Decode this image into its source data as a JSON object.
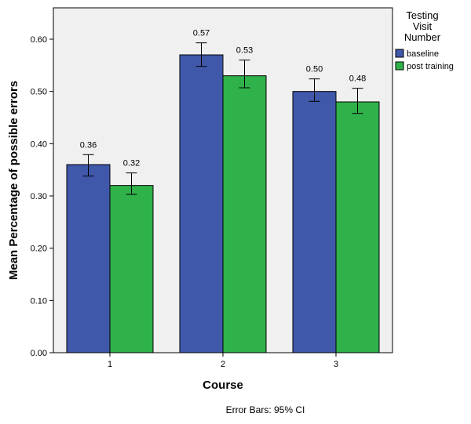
{
  "chart_data": {
    "type": "bar",
    "categories": [
      "1",
      "2",
      "3"
    ],
    "series": [
      {
        "name": "baseline",
        "color": "#3f58aa",
        "values": [
          0.36,
          0.57,
          0.5
        ],
        "ci_low": [
          0.338,
          0.548,
          0.481
        ],
        "ci_high": [
          0.379,
          0.593,
          0.524
        ],
        "labels": [
          "0.36",
          "0.57",
          "0.50"
        ]
      },
      {
        "name": "post training",
        "color": "#2fb24a",
        "values": [
          0.32,
          0.53,
          0.48
        ],
        "ci_low": [
          0.303,
          0.507,
          0.458
        ],
        "ci_high": [
          0.344,
          0.56,
          0.506
        ],
        "labels": [
          "0.32",
          "0.53",
          "0.48"
        ]
      }
    ],
    "xlabel": "Course",
    "ylabel": "Mean Percentage of possible errors",
    "ylim": [
      0,
      0.6
    ],
    "yticks": [
      0,
      0.1,
      0.2,
      0.3,
      0.4,
      0.5,
      0.6
    ],
    "ytick_labels": [
      "0.00",
      "0.10",
      "0.20",
      "0.30",
      "0.40",
      "0.50",
      "0.60"
    ],
    "legend": {
      "title_lines": [
        "Testing",
        "Visit",
        "Number"
      ],
      "position": "top-right, outside plot"
    },
    "footnote": "Error Bars: 95% CI",
    "plot_background": "#f0f0f0",
    "grid": false
  }
}
